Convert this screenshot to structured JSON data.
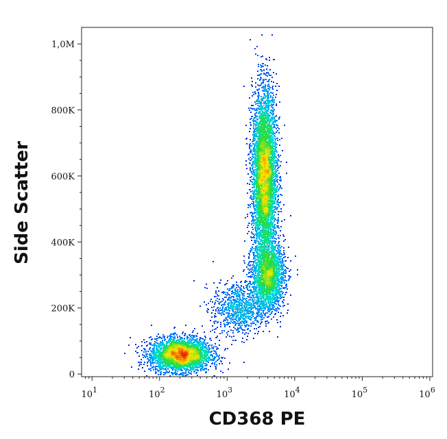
{
  "chart_data": {
    "type": "scatter",
    "title": "",
    "xlabel": "CD368 PE",
    "ylabel": "Side Scatter",
    "x_scale": "log",
    "xlim": [
      7,
      1100000
    ],
    "ylim": [
      -8000,
      1050000
    ],
    "grid": false,
    "legend": "none",
    "colormap": "density (blue → cyan → green → yellow → red)",
    "x_ticks": [
      {
        "value": 10,
        "base": "10",
        "exp": "1"
      },
      {
        "value": 100,
        "base": "10",
        "exp": "2"
      },
      {
        "value": 1000,
        "base": "10",
        "exp": "3"
      },
      {
        "value": 10000,
        "base": "10",
        "exp": "4"
      },
      {
        "value": 100000,
        "base": "10",
        "exp": "5"
      },
      {
        "value": 1000000,
        "base": "10",
        "exp": "6"
      }
    ],
    "y_ticks": [
      {
        "value": 0,
        "label": "0"
      },
      {
        "value": 200000,
        "label": "200K"
      },
      {
        "value": 400000,
        "label": "400K"
      },
      {
        "value": 600000,
        "label": "600K"
      },
      {
        "value": 800000,
        "label": "800K"
      },
      {
        "value": 1000000,
        "label": "1,0M"
      }
    ],
    "populations": [
      {
        "center": [
          200,
          60000
        ],
        "spread": [
          0.22,
          25000
        ],
        "count": 3500
      },
      {
        "center": [
          3500,
          600000
        ],
        "spread": [
          0.09,
          130000
        ],
        "count": 6000
      },
      {
        "center": [
          4000,
          300000
        ],
        "spread": [
          0.12,
          50000
        ],
        "count": 2200
      },
      {
        "center": [
          1500,
          200000
        ],
        "spread": [
          0.2,
          40000
        ],
        "count": 900
      }
    ]
  }
}
